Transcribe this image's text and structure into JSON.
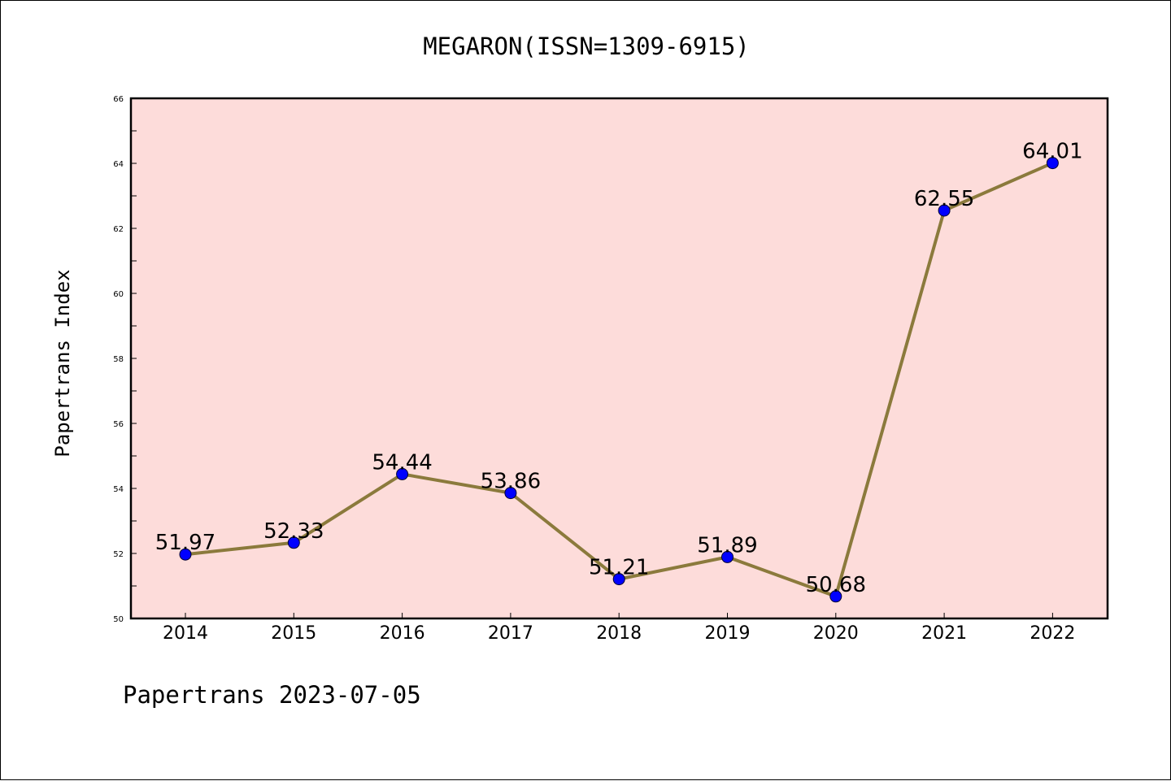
{
  "chart_data": {
    "type": "line",
    "title": "MEGARON(ISSN=1309-6915)",
    "xlabel": "",
    "ylabel": "Papertrans Index",
    "categories": [
      "2014",
      "2015",
      "2016",
      "2017",
      "2018",
      "2019",
      "2020",
      "2021",
      "2022"
    ],
    "series": [
      {
        "values": [
          51.97,
          52.33,
          54.44,
          53.86,
          51.21,
          51.89,
          50.68,
          62.55,
          64.01
        ],
        "labels": [
          "51.97",
          "52.33",
          "54.44",
          "53.86",
          "51.21",
          "51.89",
          "50.68",
          "62.55",
          "64.01"
        ]
      }
    ],
    "ylim": [
      50,
      66
    ],
    "yticks": [
      50,
      52,
      54,
      56,
      58,
      60,
      62,
      64,
      66
    ],
    "ytick_labels": [
      "50",
      "52",
      "54",
      "56",
      "58",
      "60",
      "62",
      "64",
      "66"
    ],
    "grid": false,
    "legend": "none",
    "colors": {
      "plot_background": "#fddcda",
      "line": "#8b7a3c",
      "marker": "#0000ff"
    }
  },
  "footer": "Papertrans 2023-07-05"
}
